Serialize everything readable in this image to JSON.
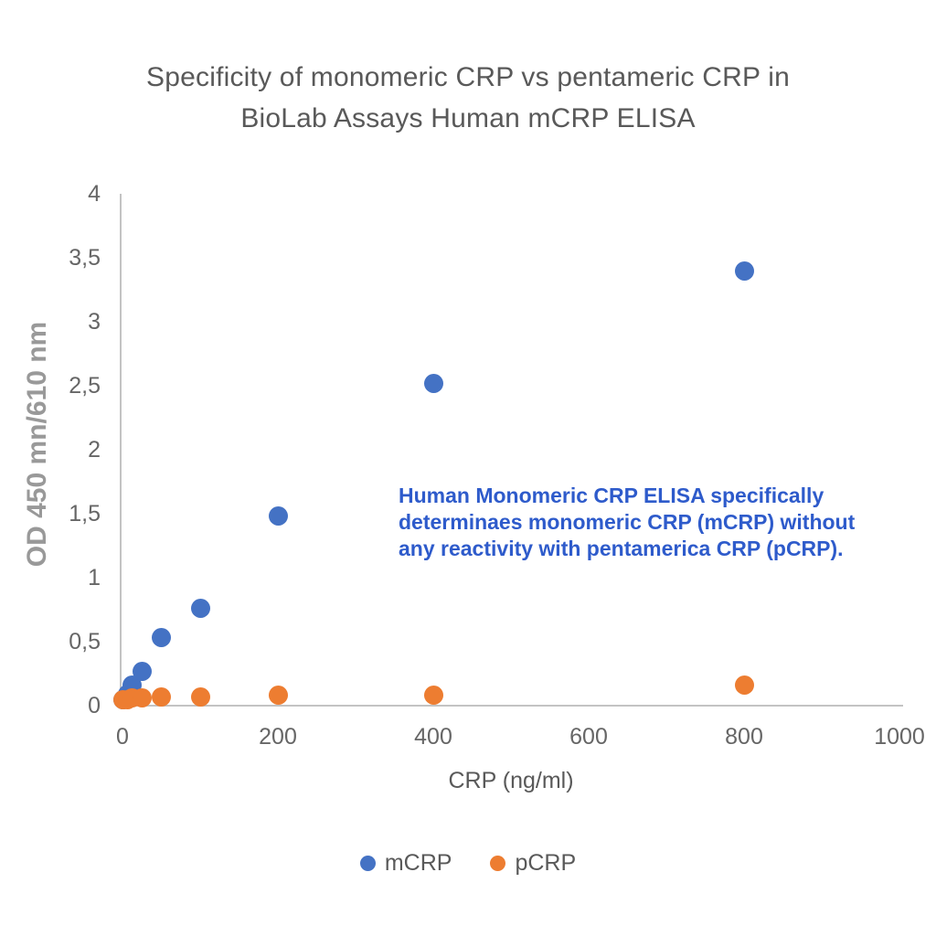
{
  "title_lines": [
    "Specificity of monomeric CRP vs pentameric CRP in",
    "BioLab Assays Human mCRP ELISA"
  ],
  "annotation": {
    "color": "#2e5bcb",
    "lines": [
      "Human Monomeric CRP ELISA specifically",
      "determinaes monomeric CRP (mCRP) without",
      "any reactivity with pentamerica CRP (pCRP)."
    ]
  },
  "legend": [
    {
      "label": "mCRP",
      "color": "#4472c4"
    },
    {
      "label": "pCRP",
      "color": "#ed7d31"
    }
  ],
  "chart_data": {
    "type": "scatter",
    "title": "Specificity of monomeric CRP vs pentameric CRP in BioLab Assays Human mCRP ELISA",
    "xlabel": "CRP (ng/ml)",
    "ylabel": "OD 450 mn/610 nm",
    "xlim": [
      0,
      1000
    ],
    "ylim": [
      0,
      4
    ],
    "grid": false,
    "legend_position": "bottom",
    "xticks": {
      "values": [
        0,
        200,
        400,
        600,
        800,
        1000
      ],
      "labels": [
        "0",
        "200",
        "400",
        "600",
        "800",
        "1000"
      ]
    },
    "yticks": {
      "values": [
        0,
        0.5,
        1,
        1.5,
        2,
        2.5,
        3,
        3.5,
        4
      ],
      "labels": [
        "0",
        "0,5",
        "1",
        "1,5",
        "2",
        "2,5",
        "3",
        "3,5",
        "4"
      ]
    },
    "series": [
      {
        "name": "mCRP",
        "color": "#4472c4",
        "points": [
          [
            0,
            0.05
          ],
          [
            6.25,
            0.09
          ],
          [
            12.5,
            0.16
          ],
          [
            25,
            0.27
          ],
          [
            50,
            0.53
          ],
          [
            100,
            0.76
          ],
          [
            200,
            1.48
          ],
          [
            400,
            2.52
          ],
          [
            800,
            3.4
          ]
        ]
      },
      {
        "name": "pCRP",
        "color": "#ed7d31",
        "points": [
          [
            0,
            0.05
          ],
          [
            6.25,
            0.05
          ],
          [
            12.5,
            0.06
          ],
          [
            25,
            0.06
          ],
          [
            50,
            0.07
          ],
          [
            100,
            0.07
          ],
          [
            200,
            0.08
          ],
          [
            400,
            0.08
          ],
          [
            800,
            0.16
          ]
        ]
      }
    ]
  }
}
